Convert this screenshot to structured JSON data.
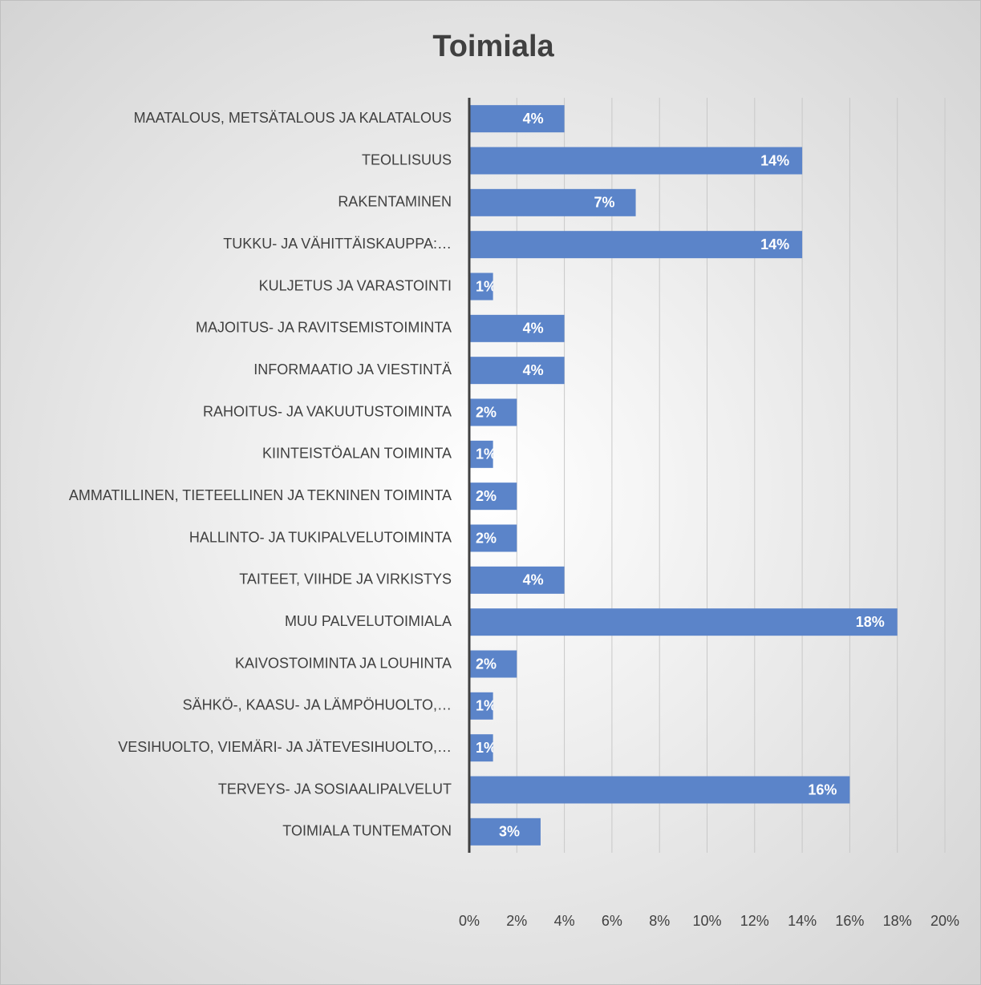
{
  "chart_data": {
    "type": "bar",
    "orientation": "horizontal",
    "title": "Toimiala",
    "categories": [
      "MAATALOUS, METSÄTALOUS JA KALATALOUS",
      "TEOLLISUUS",
      "RAKENTAMINEN",
      "TUKKU- JA VÄHITTÄISKAUPPA:…",
      "KULJETUS JA VARASTOINTI",
      "MAJOITUS- JA RAVITSEMISTOIMINTA",
      "INFORMAATIO JA VIESTINTÄ",
      "RAHOITUS- JA VAKUUTUSTOIMINTA",
      "KIINTEISTÖALAN TOIMINTA",
      "AMMATILLINEN, TIETEELLINEN JA TEKNINEN TOIMINTA",
      "HALLINTO- JA TUKIPALVELUTOIMINTA",
      "TAITEET, VIIHDE JA VIRKISTYS",
      "MUU PALVELUTOIMIALA",
      "KAIVOSTOIMINTA JA LOUHINTA",
      "SÄHKÖ-, KAASU- JA LÄMPÖHUOLTO,…",
      "VESIHUOLTO, VIEMÄRI- JA JÄTEVESIHUOLTO,…",
      "TERVEYS- JA SOSIAALIPALVELUT",
      "TOIMIALA TUNTEMATON"
    ],
    "values": [
      4,
      14,
      7,
      14,
      1,
      4,
      4,
      2,
      1,
      2,
      2,
      4,
      18,
      2,
      1,
      1,
      16,
      3
    ],
    "value_labels": [
      "4%",
      "14%",
      "7%",
      "14%",
      "1%",
      "4%",
      "4%",
      "2%",
      "1%",
      "2%",
      "2%",
      "4%",
      "18%",
      "2%",
      "1%",
      "1%",
      "16%",
      "3%"
    ],
    "color": "#5b84c9",
    "xlim": [
      0,
      20
    ],
    "xticks": [
      {
        "value": 0,
        "label": "0%"
      },
      {
        "value": 2,
        "label": "2%"
      },
      {
        "value": 4,
        "label": "4%"
      },
      {
        "value": 6,
        "label": "6%"
      },
      {
        "value": 8,
        "label": "8%"
      },
      {
        "value": 10,
        "label": "10%"
      },
      {
        "value": 12,
        "label": "12%"
      },
      {
        "value": 14,
        "label": "14%"
      },
      {
        "value": 16,
        "label": "16%"
      },
      {
        "value": 18,
        "label": "18%"
      },
      {
        "value": 20,
        "label": "20%"
      }
    ],
    "grid": true
  }
}
